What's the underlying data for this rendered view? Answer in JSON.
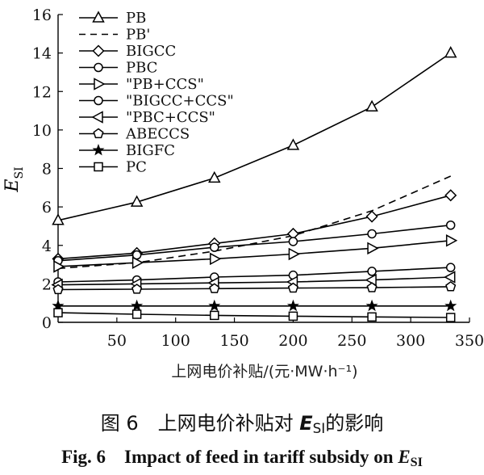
{
  "chart_data": {
    "type": "line",
    "xlabel": "上网电价补贴/(元·MW·h⁻¹)",
    "ylabel_main": "E",
    "ylabel_sub": "SI",
    "xlim": [
      0,
      350
    ],
    "ylim": [
      0,
      16
    ],
    "xticks": [
      50,
      100,
      150,
      200,
      250,
      300,
      350
    ],
    "yticks": [
      0,
      2,
      4,
      6,
      8,
      10,
      12,
      14,
      16
    ],
    "grid": false,
    "legend": "top-left",
    "x": [
      0,
      67,
      133,
      200,
      267,
      334
    ],
    "series": [
      {
        "name": "PB",
        "marker": "triangle-up",
        "dash": false,
        "values": [
          5.3,
          6.25,
          7.5,
          9.2,
          11.2,
          14.0
        ]
      },
      {
        "name": "PB'",
        "marker": "none",
        "dash": true,
        "x": [
          0,
          67,
          133,
          200,
          267,
          334
        ],
        "values": [
          2.8,
          3.1,
          3.7,
          4.5,
          5.8,
          7.6
        ]
      },
      {
        "name": "BIGCC",
        "marker": "diamond",
        "dash": false,
        "values": [
          3.3,
          3.6,
          4.1,
          4.6,
          5.5,
          6.6
        ]
      },
      {
        "name": "PBC",
        "marker": "circle",
        "dash": false,
        "values": [
          3.2,
          3.5,
          3.9,
          4.2,
          4.6,
          5.05
        ]
      },
      {
        "name": "\"PB+CCS\"",
        "marker": "triangle-right",
        "dash": false,
        "values": [
          2.9,
          3.1,
          3.3,
          3.55,
          3.85,
          4.25
        ]
      },
      {
        "name": "\"BIGCC+CCS\"",
        "marker": "circle",
        "dash": false,
        "values": [
          2.1,
          2.2,
          2.35,
          2.45,
          2.65,
          2.85
        ]
      },
      {
        "name": "\"PBC+CCS\"",
        "marker": "triangle-left",
        "dash": false,
        "values": [
          1.95,
          2.0,
          2.05,
          2.1,
          2.2,
          2.35
        ]
      },
      {
        "name": "ABECCS",
        "marker": "pentagon",
        "dash": false,
        "values": [
          1.7,
          1.72,
          1.75,
          1.78,
          1.8,
          1.85
        ]
      },
      {
        "name": "BIGFC",
        "marker": "star",
        "dash": false,
        "values": [
          0.85,
          0.85,
          0.85,
          0.85,
          0.85,
          0.85
        ]
      },
      {
        "name": "PC",
        "marker": "square",
        "dash": false,
        "values": [
          0.5,
          0.42,
          0.36,
          0.32,
          0.28,
          0.25
        ]
      }
    ]
  },
  "caption": {
    "cn_prefix": "图 6　上网电价补贴对 ",
    "cn_E": "E",
    "cn_sub": "SI",
    "cn_suffix": "的影响",
    "en_prefix": "Fig. 6　Impact of feed in tariff subsidy on ",
    "en_E": "E",
    "en_sub": "SI"
  }
}
